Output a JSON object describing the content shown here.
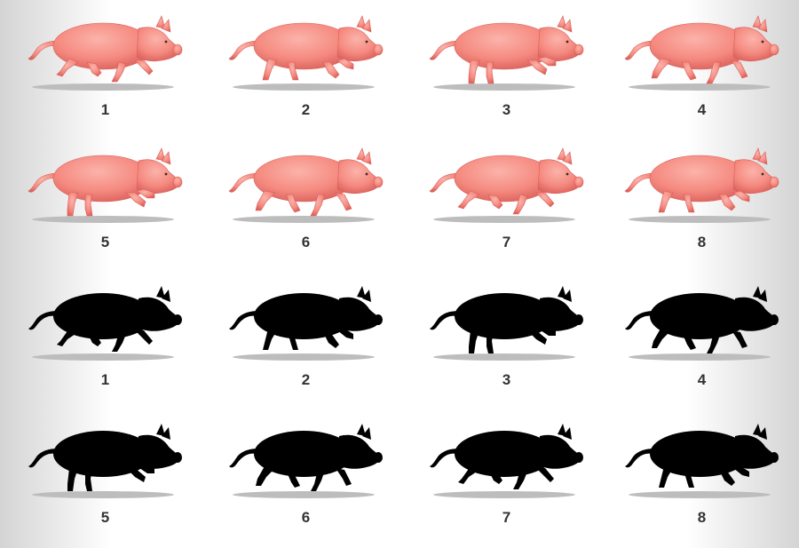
{
  "colors": {
    "pig_body": "#f58a80",
    "pig_highlight": "#fbb3aa",
    "pig_shade": "#d9605a",
    "silhouette": "#000000",
    "shadow": "#bdbdbd",
    "label": "#333333"
  },
  "rows": [
    {
      "style": "color",
      "frames": [
        "1",
        "2",
        "3",
        "4"
      ]
    },
    {
      "style": "color",
      "frames": [
        "5",
        "6",
        "7",
        "8"
      ]
    },
    {
      "style": "silhouette",
      "frames": [
        "1",
        "2",
        "3",
        "4"
      ]
    },
    {
      "style": "silhouette",
      "frames": [
        "5",
        "6",
        "7",
        "8"
      ]
    }
  ]
}
